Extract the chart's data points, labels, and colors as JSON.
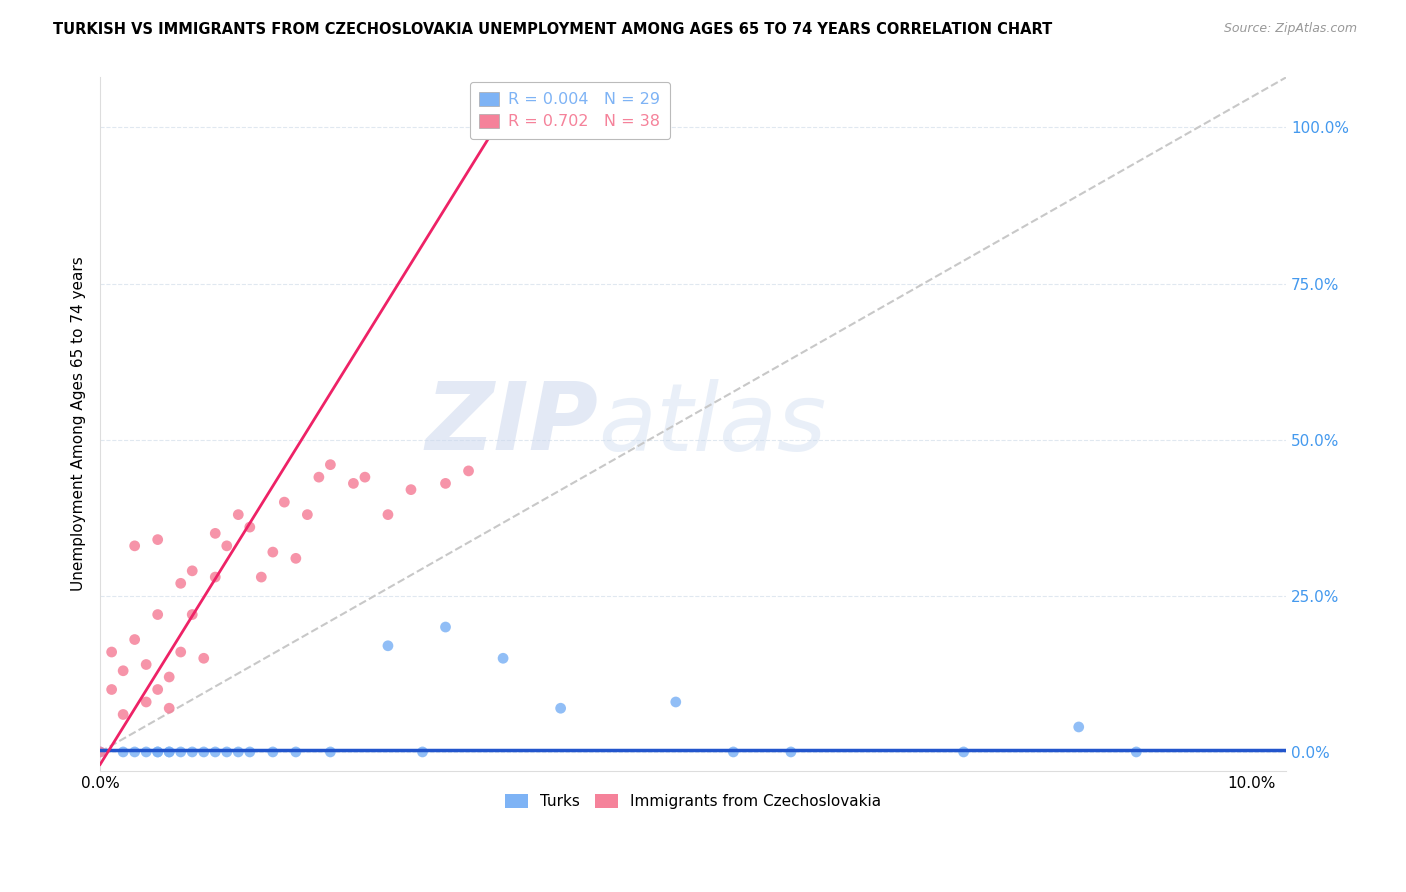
{
  "title": "TURKISH VS IMMIGRANTS FROM CZECHOSLOVAKIA UNEMPLOYMENT AMONG AGES 65 TO 74 YEARS CORRELATION CHART",
  "source": "Source: ZipAtlas.com",
  "ylabel": "Unemployment Among Ages 65 to 74 years",
  "legend_turks_label": "Turks",
  "legend_czech_label": "Immigrants from Czechoslovakia",
  "turks_R_label": "R = 0.004",
  "turks_N_label": "N = 29",
  "czech_R_label": "R = 0.702",
  "czech_N_label": "N = 38",
  "turks_color": "#7eb3f5",
  "czech_color": "#f5829a",
  "turks_line_color": "#2255cc",
  "czech_line_color": "#ee2266",
  "diagonal_color": "#c8c8c8",
  "background_color": "#ffffff",
  "grid_color": "#e0e8f0",
  "xlim": [
    0.0,
    0.103
  ],
  "ylim": [
    -0.03,
    1.08
  ],
  "ytick_labels": [
    "0.0%",
    "25.0%",
    "50.0%",
    "75.0%",
    "100.0%"
  ],
  "ytick_values": [
    0.0,
    0.25,
    0.5,
    0.75,
    1.0
  ],
  "xtick_values": [
    0.0,
    0.01,
    0.02,
    0.03,
    0.04,
    0.05,
    0.06,
    0.07,
    0.08,
    0.09,
    0.1
  ],
  "turks_scatter_x": [
    0.0,
    0.002,
    0.003,
    0.004,
    0.005,
    0.005,
    0.006,
    0.006,
    0.007,
    0.008,
    0.009,
    0.01,
    0.011,
    0.012,
    0.013,
    0.015,
    0.017,
    0.02,
    0.025,
    0.028,
    0.03,
    0.035,
    0.04,
    0.05,
    0.055,
    0.06,
    0.075,
    0.085,
    0.09
  ],
  "turks_scatter_y": [
    0.0,
    0.0,
    0.0,
    0.0,
    0.0,
    0.0,
    0.0,
    0.0,
    0.0,
    0.0,
    0.0,
    0.0,
    0.0,
    0.0,
    0.0,
    0.0,
    0.0,
    0.0,
    0.17,
    0.0,
    0.2,
    0.15,
    0.07,
    0.08,
    0.0,
    0.0,
    0.0,
    0.04,
    0.0
  ],
  "czech_scatter_x": [
    0.0,
    0.001,
    0.001,
    0.002,
    0.002,
    0.003,
    0.003,
    0.004,
    0.004,
    0.005,
    0.005,
    0.005,
    0.006,
    0.006,
    0.007,
    0.007,
    0.008,
    0.008,
    0.009,
    0.01,
    0.01,
    0.011,
    0.012,
    0.013,
    0.014,
    0.015,
    0.016,
    0.017,
    0.018,
    0.019,
    0.02,
    0.022,
    0.023,
    0.025,
    0.027,
    0.03,
    0.032,
    0.033
  ],
  "czech_scatter_y": [
    0.0,
    0.1,
    0.16,
    0.06,
    0.13,
    0.18,
    0.33,
    0.08,
    0.14,
    0.1,
    0.22,
    0.34,
    0.07,
    0.12,
    0.16,
    0.27,
    0.22,
    0.29,
    0.15,
    0.28,
    0.35,
    0.33,
    0.38,
    0.36,
    0.28,
    0.32,
    0.4,
    0.31,
    0.38,
    0.44,
    0.46,
    0.43,
    0.44,
    0.38,
    0.42,
    0.43,
    0.45,
    1.0
  ],
  "turks_line_x": [
    0.0,
    0.103
  ],
  "turks_line_y": [
    0.003,
    0.003
  ],
  "czech_line_x": [
    0.0,
    0.035
  ],
  "czech_line_y": [
    -0.02,
    1.02
  ],
  "diag_line_x": [
    0.0,
    0.103
  ],
  "diag_line_y": [
    0.0,
    1.08
  ]
}
